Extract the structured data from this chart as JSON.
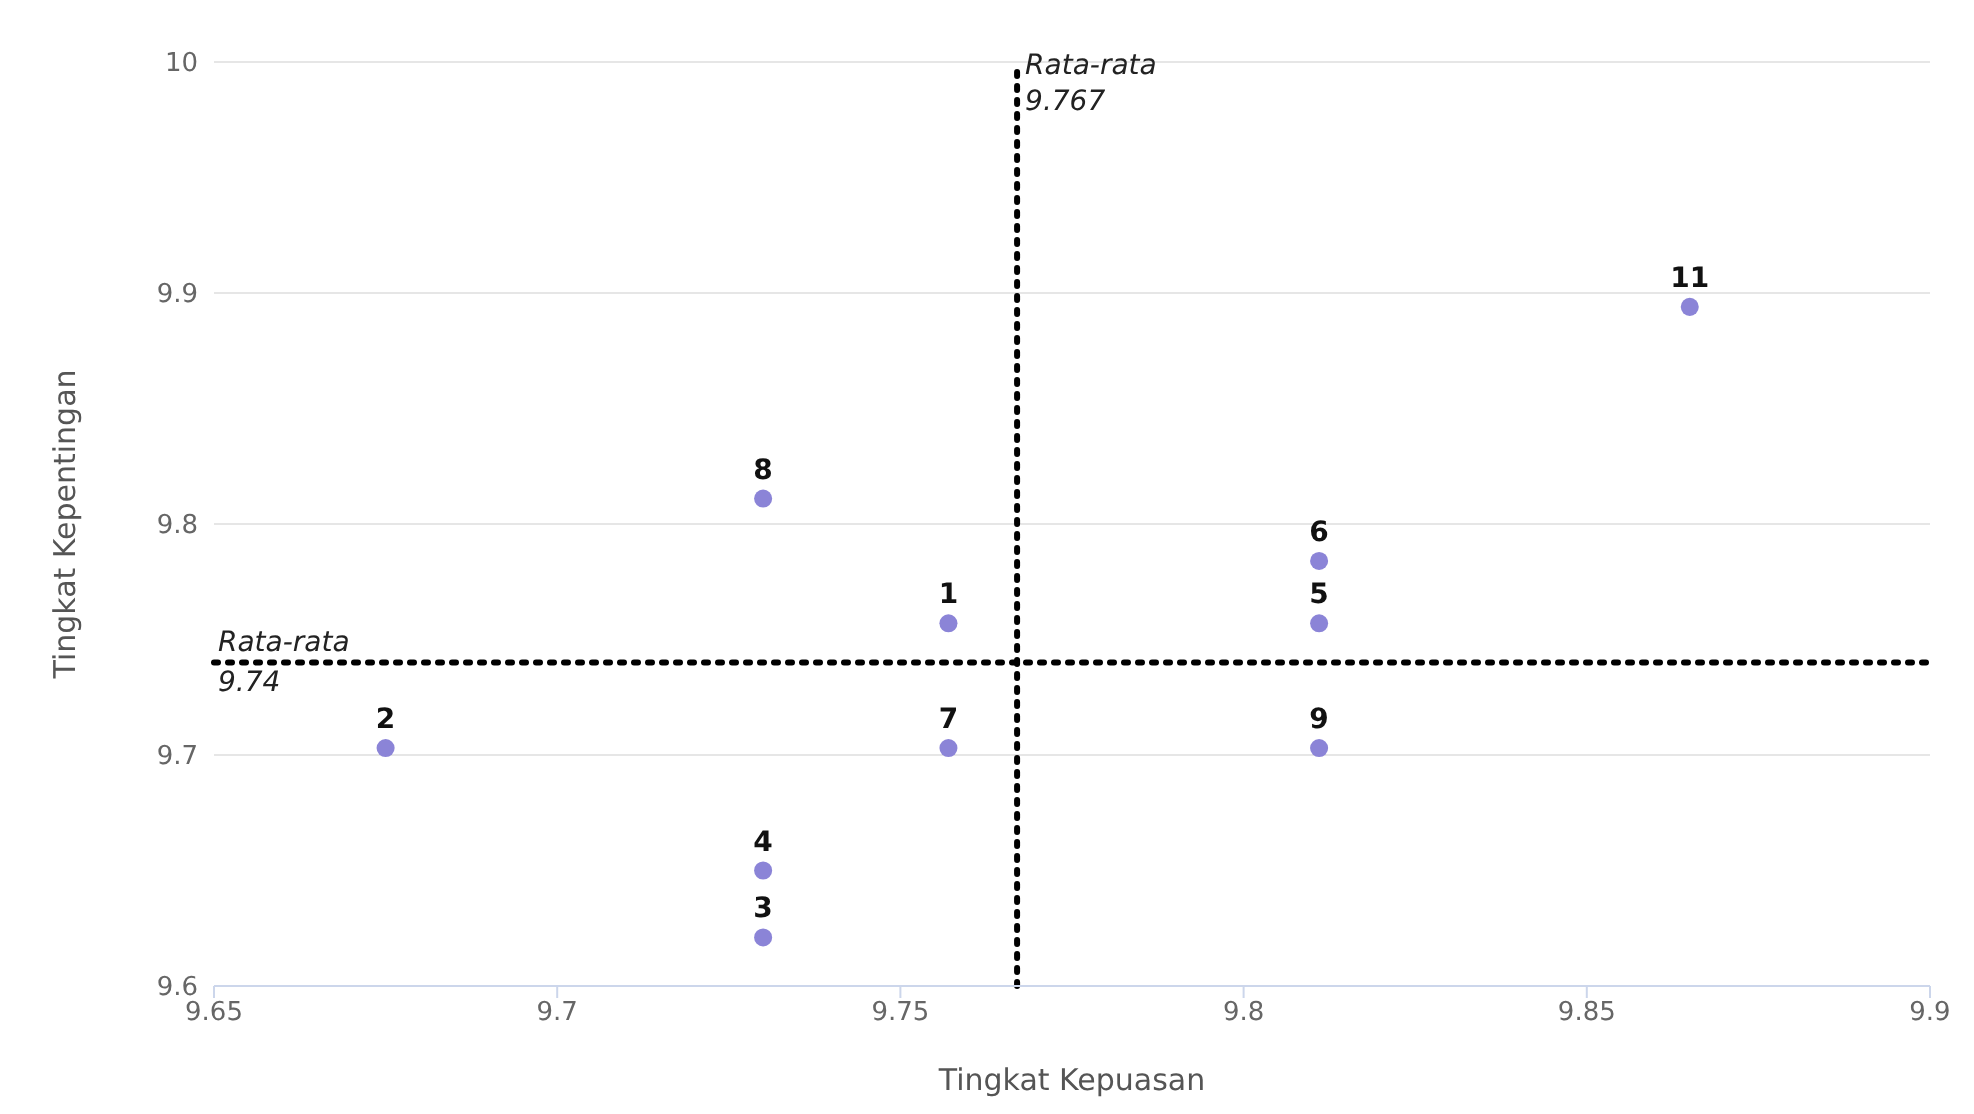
{
  "chart_data": {
    "type": "scatter",
    "xlabel": "Tingkat Kepuasan",
    "ylabel": "Tingkat Kepentingan",
    "x": [
      9.757,
      9.675,
      9.73,
      9.73,
      9.811,
      9.811,
      9.757,
      9.73,
      9.811,
      9.865
    ],
    "series": [
      {
        "color": "#8b84d7",
        "values": [
          9.757,
          9.703,
          9.621,
          9.65,
          9.757,
          9.784,
          9.703,
          9.811,
          9.703,
          9.894
        ]
      }
    ],
    "annotations": [
      {
        "text": "1",
        "x": 9.757,
        "y": 9.757
      },
      {
        "text": "2",
        "x": 9.675,
        "y": 9.703
      },
      {
        "text": "3",
        "x": 9.73,
        "y": 9.621
      },
      {
        "text": "4",
        "x": 9.73,
        "y": 9.65
      },
      {
        "text": "5",
        "x": 9.811,
        "y": 9.757
      },
      {
        "text": "6",
        "x": 9.811,
        "y": 9.784
      },
      {
        "text": "7",
        "x": 9.757,
        "y": 9.703
      },
      {
        "text": "8",
        "x": 9.73,
        "y": 9.811
      },
      {
        "text": "9",
        "x": 9.811,
        "y": 9.703
      },
      {
        "text": "11",
        "x": 9.865,
        "y": 9.894
      }
    ],
    "xlim": [
      9.65,
      9.9
    ],
    "xticks": [
      9.65,
      9.7,
      9.75,
      9.8,
      9.85,
      9.9
    ],
    "ylim": [
      9.6,
      10
    ],
    "yticks": [
      9.6,
      9.7,
      9.8,
      9.9,
      10
    ],
    "grid": "y",
    "marker": "circle",
    "ref_lines": [
      {
        "axis": "x",
        "value": 9.767,
        "label": "Rata-rata 9.767",
        "line_style": "dotted",
        "color": "#000000"
      },
      {
        "axis": "y",
        "value": 9.74,
        "label": "Rata-rata 9.74",
        "line_style": "dotted",
        "color": "#000000"
      }
    ]
  }
}
